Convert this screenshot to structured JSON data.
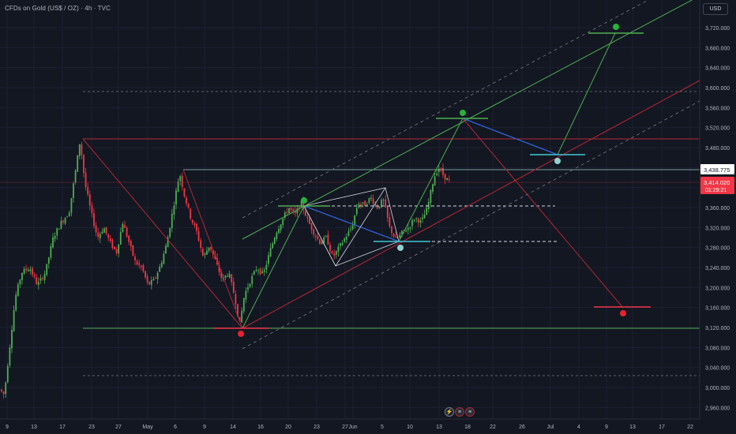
{
  "header": {
    "title": "CFDs on Gold (US$ / OZ) · 4h · TVC"
  },
  "currency_button": "USD",
  "bottom_icons": [
    "flash-icon",
    "us-flag-icon",
    "us-flag-icon"
  ],
  "colors": {
    "background": "#131722",
    "grid": "#1c2030",
    "candle_up": "#22ab94",
    "candle_up_bright": "#4caf50",
    "candle_down": "#f23645",
    "line_green": "#4caf50",
    "line_red": "#b22833",
    "line_blue": "#2962ff",
    "line_gray": "#9598a1",
    "label_red": "#f23645",
    "label_white": "#ffffff",
    "dot_green": "#27b23d",
    "dot_red": "#e8212f",
    "dot_cyan": "#8fd3cf"
  },
  "chart_data": {
    "type": "candlestick",
    "symbol": "CFDs on Gold (US$ / OZ)",
    "timeframe": "4h",
    "y_axis": {
      "range": [
        2940,
        3780
      ],
      "ticks": [
        2960,
        3000,
        3040,
        3080,
        3120,
        3160,
        3200,
        3240,
        3280,
        3320,
        3360,
        3400,
        3440,
        3480,
        3520,
        3560,
        3600,
        3640,
        3680,
        3720
      ],
      "tick_labels": [
        "2,960.000",
        "3,000.000",
        "3,040.000",
        "3,080.000",
        "3,120.000",
        "3,160.000",
        "3,200.000",
        "3,240.000",
        "3,280.000",
        "3,320.000",
        "3,360.000",
        "3,400.000",
        "3,440.000",
        "3,480.000",
        "3,520.000",
        "3,560.000",
        "3,600.000",
        "3,640.000",
        "3,680.000",
        "3,720.000"
      ]
    },
    "x_axis": {
      "tick_labels": [
        "9",
        "13",
        "17",
        "23",
        "27",
        "May",
        "6",
        "9",
        "14",
        "16",
        "20",
        "23",
        "27",
        "Jun",
        "5",
        "10",
        "13",
        "18",
        "22",
        "26",
        "Jul",
        "4",
        "9",
        "13",
        "17",
        "22"
      ]
    },
    "price_labels": [
      {
        "text": "3,438.775",
        "value": 3438.775,
        "style": "white"
      },
      {
        "text": "3,414.020",
        "value": 3414.02,
        "style": "red"
      },
      {
        "text": "01:29:21",
        "style": "red"
      }
    ],
    "key_prices": {
      "apr_high": 3500,
      "apr_low_marker": 3120,
      "may_low": 3120,
      "pattern_top": 3438.775,
      "pattern_neck": 3366,
      "pattern_support": 3292,
      "last_close": 3414.02,
      "target_up_1": 3545,
      "target_up_2": 3712,
      "target_down": 3163,
      "dashed_upper": 3595,
      "dashed_lower": 3025
    },
    "markers": [
      {
        "type": "circle",
        "color": "green",
        "price": 3365
      },
      {
        "type": "circle",
        "color": "green",
        "price": 3550
      },
      {
        "type": "circle",
        "color": "green",
        "price": 3732
      },
      {
        "type": "circle",
        "color": "cyan",
        "price": 3292
      },
      {
        "type": "circle",
        "color": "cyan",
        "price": 3466
      },
      {
        "type": "circle",
        "color": "red",
        "price": 3114
      },
      {
        "type": "circle",
        "color": "red",
        "price": 3155
      }
    ]
  }
}
